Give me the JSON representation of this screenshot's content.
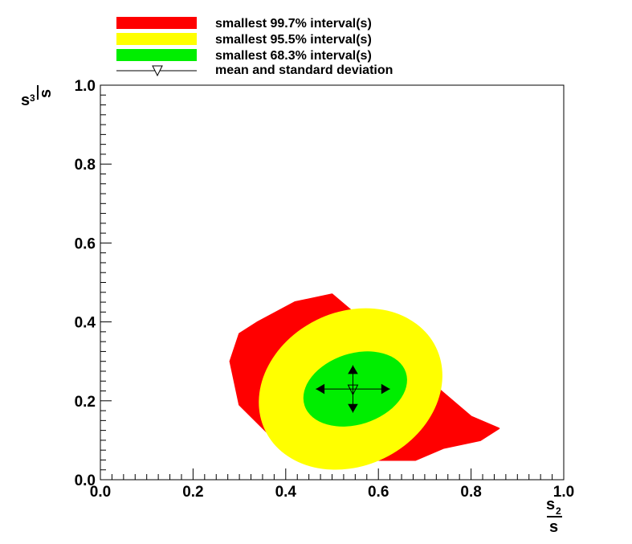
{
  "chart_data": {
    "type": "heatmap",
    "title": "",
    "xlabel": {
      "main": "s",
      "sub": "2",
      "den": "s"
    },
    "ylabel": {
      "main": "s",
      "sub": "3",
      "den": "s"
    },
    "xlim": [
      0,
      1
    ],
    "ylim": [
      0,
      1
    ],
    "x_ticks": [
      "0.0",
      "0.2",
      "0.4",
      "0.6",
      "0.8",
      "1.0"
    ],
    "y_ticks": [
      "0.0",
      "0.2",
      "0.4",
      "0.6",
      "0.8",
      "1.0"
    ],
    "grid": false,
    "legend_position": "top-left",
    "legend": [
      {
        "label": "smallest 99.7% interval(s)",
        "color": "#ff0000"
      },
      {
        "label": "smallest 95.5% interval(s)",
        "color": "#ffff00"
      },
      {
        "label": "smallest 68.3% interval(s)",
        "color": "#00ee00"
      },
      {
        "label": "mean and standard deviation",
        "color": "#000000"
      }
    ],
    "regions": {
      "interval_99_7": {
        "color": "#ff0000",
        "outline": [
          [
            0.28,
            0.3
          ],
          [
            0.3,
            0.37
          ],
          [
            0.34,
            0.4
          ],
          [
            0.42,
            0.45
          ],
          [
            0.5,
            0.47
          ],
          [
            0.55,
            0.42
          ],
          [
            0.58,
            0.4
          ],
          [
            0.7,
            0.26
          ],
          [
            0.8,
            0.16
          ],
          [
            0.86,
            0.13
          ],
          [
            0.82,
            0.1
          ],
          [
            0.74,
            0.08
          ],
          [
            0.68,
            0.05
          ],
          [
            0.6,
            0.05
          ],
          [
            0.52,
            0.05
          ],
          [
            0.44,
            0.08
          ],
          [
            0.36,
            0.12
          ],
          [
            0.3,
            0.19
          ]
        ]
      },
      "interval_95_5": {
        "color": "#ffff00",
        "center": [
          0.54,
          0.23
        ],
        "rx": 0.205,
        "ry": 0.195,
        "rotation_deg": -26
      },
      "interval_68_3": {
        "color": "#00ee00",
        "center": [
          0.55,
          0.23
        ],
        "rx": 0.115,
        "ry": 0.09,
        "rotation_deg": -18
      }
    },
    "mean": {
      "x": 0.545,
      "y": 0.23
    },
    "std": {
      "x": 0.08,
      "y": 0.06
    }
  }
}
